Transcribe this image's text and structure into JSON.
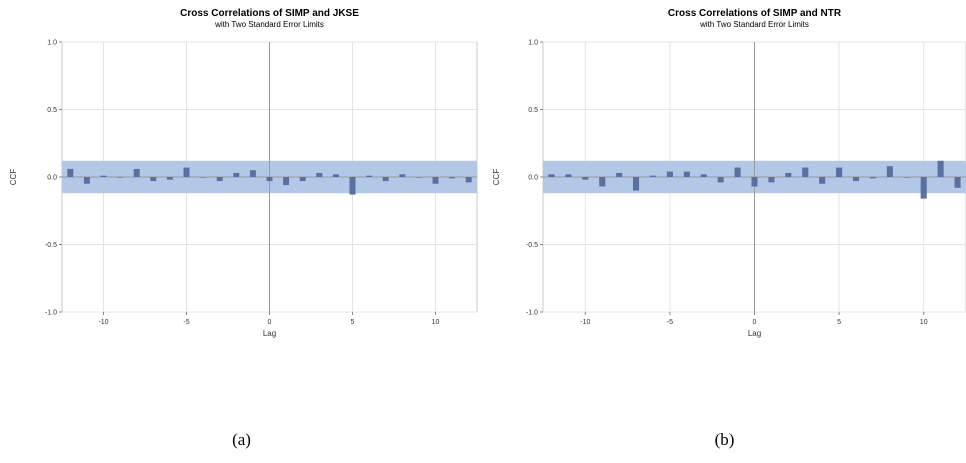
{
  "chart_data": [
    {
      "type": "bar",
      "title": "Cross Correlations of SIMP and JKSE",
      "subtitle": "with Two Standard Error Limits",
      "xlabel": "Lag",
      "ylabel": "CCF",
      "xlim": [
        -12.5,
        12.5
      ],
      "ylim": [
        -1.0,
        1.0
      ],
      "xticks": [
        -10,
        -5,
        0,
        5,
        10
      ],
      "yticks": [
        1.0,
        0.5,
        0.0,
        -0.5,
        -1.0
      ],
      "ytick_labels": [
        "1.0",
        "0.5",
        "0.0",
        "-0.5",
        "-1.0"
      ],
      "grid": true,
      "std_error_limit": 0.12,
      "x": [
        -12,
        -11,
        -10,
        -9,
        -8,
        -7,
        -6,
        -5,
        -4,
        -3,
        -2,
        -1,
        0,
        1,
        2,
        3,
        4,
        5,
        6,
        7,
        8,
        9,
        10,
        11,
        12
      ],
      "values": [
        0.06,
        -0.05,
        0.01,
        0.0,
        0.06,
        -0.03,
        -0.02,
        0.07,
        0.0,
        -0.03,
        0.03,
        0.05,
        -0.03,
        -0.06,
        -0.03,
        0.03,
        0.02,
        -0.13,
        0.01,
        -0.03,
        0.02,
        0.0,
        -0.05,
        -0.01,
        -0.04
      ],
      "caption": "(a)"
    },
    {
      "type": "bar",
      "title": "Cross Correlations of SIMP and NTR",
      "subtitle": "with Two Standard Error Limits",
      "xlabel": "Lag",
      "ylabel": "CCF",
      "xlim": [
        -12.5,
        12.5
      ],
      "ylim": [
        -1.0,
        1.0
      ],
      "xticks": [
        -10,
        -5,
        0,
        5,
        10
      ],
      "yticks": [
        1.0,
        0.5,
        0.0,
        -0.5,
        -1.0
      ],
      "ytick_labels": [
        "1.0",
        "0.5",
        "0.0",
        "-0.5",
        "-1.0"
      ],
      "grid": true,
      "std_error_limit": 0.12,
      "x": [
        -12,
        -11,
        -10,
        -9,
        -8,
        -7,
        -6,
        -5,
        -4,
        -3,
        -2,
        -1,
        0,
        1,
        2,
        3,
        4,
        5,
        6,
        7,
        8,
        9,
        10,
        11,
        12
      ],
      "values": [
        0.02,
        0.02,
        -0.02,
        -0.07,
        0.03,
        -0.1,
        0.01,
        0.04,
        0.04,
        0.02,
        -0.04,
        0.07,
        -0.07,
        -0.04,
        0.03,
        0.07,
        -0.05,
        0.07,
        -0.03,
        -0.01,
        0.08,
        0.0,
        -0.16,
        0.12,
        -0.08
      ],
      "caption": "(b)"
    }
  ],
  "colors": {
    "band": "#b3c8e6",
    "bar": "#5a70a0",
    "grid": "#e4e4e4",
    "zero_line": "#9a9a9a",
    "frame": "#c8c8c8"
  }
}
